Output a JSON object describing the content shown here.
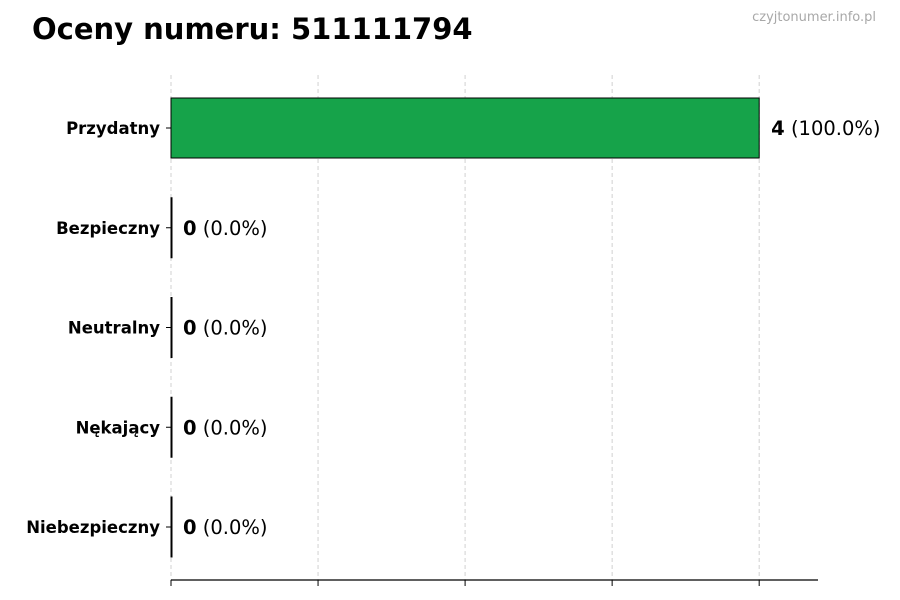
{
  "title": "Oceny numeru: 511111794",
  "watermark": "czyjtonumer.info.pl",
  "chart_data": {
    "type": "bar",
    "orientation": "horizontal",
    "title": "Oceny numeru: 511111794",
    "categories": [
      "Przydatny",
      "Bezpieczny",
      "Neutralny",
      "Nękający",
      "Niebezpieczny"
    ],
    "values": [
      4,
      0,
      0,
      0,
      0
    ],
    "data_labels": [
      {
        "count": "4",
        "pct": "(100.0%)"
      },
      {
        "count": "0",
        "pct": "(0.0%)"
      },
      {
        "count": "0",
        "pct": "(0.0%)"
      },
      {
        "count": "0",
        "pct": "(0.0%)"
      },
      {
        "count": "0",
        "pct": "(0.0%)"
      }
    ],
    "xlim": [
      0,
      4.4
    ],
    "xticks": [
      0,
      1,
      2,
      3,
      4
    ],
    "xtick_labels_shown": false,
    "grid": "vertical dashed",
    "bar_color": "#16a34a",
    "xlabel": "",
    "ylabel": ""
  }
}
